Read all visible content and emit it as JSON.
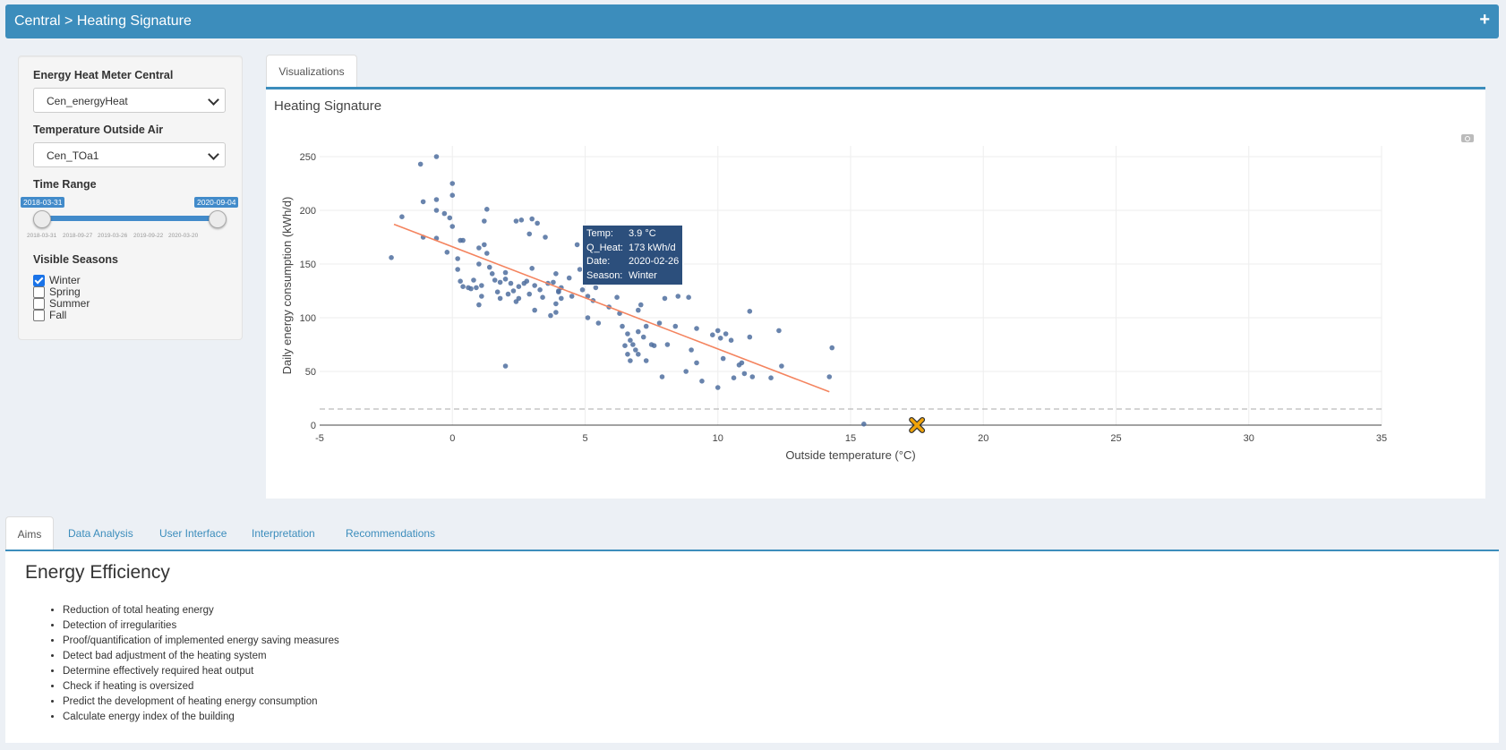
{
  "header": {
    "title": "Central > Heating Signature",
    "expand": "+"
  },
  "sidebar": {
    "meter_label": "Energy Heat Meter Central",
    "meter_value": "Cen_energyHeat",
    "temp_label": "Temperature Outside Air",
    "temp_value": "Cen_TOa1",
    "range_label": "Time Range",
    "range_from": "2018-03-31",
    "range_to": "2020-09-04",
    "range_ticks": [
      "2018-03-31",
      "2018-09-27",
      "2019-03-26",
      "2019-09-22",
      "2020-03-20"
    ],
    "seasons_label": "Visible Seasons",
    "seasons": [
      {
        "label": "Winter",
        "checked": true
      },
      {
        "label": "Spring",
        "checked": false
      },
      {
        "label": "Summer",
        "checked": false
      },
      {
        "label": "Fall",
        "checked": false
      }
    ]
  },
  "visualizations_tab": "Visualizations",
  "plot_title": "Heating Signature",
  "tooltip": {
    "temp_key": "Temp:",
    "temp_val": "3.9 °C",
    "heat_key": "Q_Heat:",
    "heat_val": "173 kWh/d",
    "date_key": "Date:",
    "date_val": "2020-02-26",
    "season_key": "Season:",
    "season_val": "Winter"
  },
  "chart_data": {
    "type": "scatter",
    "xlabel": "Outside temperature (°C)",
    "ylabel": "Daily energy consumption (kWh/d)",
    "xlim": [
      -5,
      35
    ],
    "ylim": [
      0,
      260
    ],
    "xticks": [
      -5,
      0,
      5,
      10,
      15,
      20,
      25,
      30,
      35
    ],
    "yticks": [
      0,
      50,
      100,
      150,
      200,
      250
    ],
    "grid": true,
    "point_color": "#4f6f9f",
    "line_color": "#f4845f",
    "regression": {
      "x": [
        -2.2,
        14.2
      ],
      "y": [
        187,
        31
      ]
    },
    "threshold_y": 15,
    "marker": {
      "x": 17.5,
      "y": 0,
      "color": "#f0a30a"
    },
    "points": [
      [
        -2.3,
        156
      ],
      [
        -1.9,
        194
      ],
      [
        -1.2,
        243
      ],
      [
        -1.1,
        208
      ],
      [
        -1.1,
        175
      ],
      [
        -0.6,
        250
      ],
      [
        -0.6,
        210
      ],
      [
        -0.6,
        200
      ],
      [
        -0.6,
        174
      ],
      [
        -0.3,
        197
      ],
      [
        -0.2,
        161
      ],
      [
        0,
        225
      ],
      [
        0,
        214
      ],
      [
        -0.1,
        193
      ],
      [
        0,
        185
      ],
      [
        0.2,
        155
      ],
      [
        0.2,
        145
      ],
      [
        0.3,
        172
      ],
      [
        0.4,
        172
      ],
      [
        0.3,
        134
      ],
      [
        0.4,
        129
      ],
      [
        0.6,
        128
      ],
      [
        0.7,
        127
      ],
      [
        0.8,
        135
      ],
      [
        0.9,
        128
      ],
      [
        1,
        112
      ],
      [
        1,
        150
      ],
      [
        1,
        165
      ],
      [
        1.1,
        120
      ],
      [
        1.1,
        130
      ],
      [
        1.2,
        168
      ],
      [
        1.2,
        190
      ],
      [
        1.3,
        201
      ],
      [
        1.3,
        160
      ],
      [
        1.4,
        147
      ],
      [
        1.5,
        141
      ],
      [
        1.6,
        135
      ],
      [
        1.7,
        124
      ],
      [
        1.8,
        118
      ],
      [
        1.8,
        133
      ],
      [
        2,
        55
      ],
      [
        2,
        136
      ],
      [
        2,
        142
      ],
      [
        2.1,
        122
      ],
      [
        2.2,
        132
      ],
      [
        2.3,
        125
      ],
      [
        2.4,
        190
      ],
      [
        2.4,
        115
      ],
      [
        2.5,
        118
      ],
      [
        2.5,
        129
      ],
      [
        2.6,
        191
      ],
      [
        2.7,
        132
      ],
      [
        2.8,
        134
      ],
      [
        2.9,
        122
      ],
      [
        2.9,
        178
      ],
      [
        3,
        192
      ],
      [
        3,
        146
      ],
      [
        3.1,
        107
      ],
      [
        3.1,
        130
      ],
      [
        3.2,
        188
      ],
      [
        3.3,
        126
      ],
      [
        3.4,
        119
      ],
      [
        3.5,
        175
      ],
      [
        3.6,
        132
      ],
      [
        3.7,
        102
      ],
      [
        3.8,
        133
      ],
      [
        3.9,
        113
      ],
      [
        3.9,
        105
      ],
      [
        3.9,
        141
      ],
      [
        4,
        124
      ],
      [
        4.1,
        128
      ],
      [
        4,
        125
      ],
      [
        4.1,
        118
      ],
      [
        4.4,
        137
      ],
      [
        4.5,
        120
      ],
      [
        4.7,
        168
      ],
      [
        4.8,
        145
      ],
      [
        4.9,
        126
      ],
      [
        5.1,
        120
      ],
      [
        5.1,
        100
      ],
      [
        5.4,
        128
      ],
      [
        5.3,
        116
      ],
      [
        5.5,
        95
      ],
      [
        5.8,
        144
      ],
      [
        5.9,
        110
      ],
      [
        6,
        133
      ],
      [
        6.2,
        119
      ],
      [
        6.3,
        104
      ],
      [
        6.4,
        92
      ],
      [
        6.5,
        74
      ],
      [
        6.6,
        66
      ],
      [
        6.6,
        85
      ],
      [
        6.7,
        60
      ],
      [
        6.7,
        79
      ],
      [
        6.8,
        75
      ],
      [
        6.9,
        70
      ],
      [
        7,
        87
      ],
      [
        7,
        107
      ],
      [
        7.1,
        112
      ],
      [
        7,
        66
      ],
      [
        7.2,
        82
      ],
      [
        7.3,
        60
      ],
      [
        7.3,
        92
      ],
      [
        7.5,
        75
      ],
      [
        7.6,
        74
      ],
      [
        7.8,
        95
      ],
      [
        7.9,
        45
      ],
      [
        8,
        140
      ],
      [
        8,
        118
      ],
      [
        8.1,
        75
      ],
      [
        8.4,
        92
      ],
      [
        8.5,
        120
      ],
      [
        8.5,
        143
      ],
      [
        8.8,
        50
      ],
      [
        8.9,
        119
      ],
      [
        9,
        70
      ],
      [
        9.2,
        90
      ],
      [
        9.2,
        58
      ],
      [
        9.4,
        41
      ],
      [
        9.8,
        84
      ],
      [
        10,
        35
      ],
      [
        10,
        88
      ],
      [
        10.1,
        81
      ],
      [
        10.2,
        62
      ],
      [
        10.3,
        85
      ],
      [
        10.5,
        79
      ],
      [
        10.6,
        44
      ],
      [
        10.8,
        56
      ],
      [
        10.9,
        58
      ],
      [
        11,
        48
      ],
      [
        11.2,
        82
      ],
      [
        11.2,
        106
      ],
      [
        11.3,
        45
      ],
      [
        12,
        44
      ],
      [
        12.3,
        88
      ],
      [
        12.4,
        55
      ],
      [
        14.2,
        45
      ],
      [
        14.3,
        72
      ],
      [
        15.5,
        1
      ]
    ]
  },
  "bottom_tabs": [
    "Aims",
    "Data Analysis",
    "User Interface",
    "Interpretation",
    "Recommendations"
  ],
  "aims": {
    "heading": "Energy Efficiency",
    "items": [
      "Reduction of total heating energy",
      "Detection of irregularities",
      "Proof/quantification of implemented energy saving measures",
      "Detect bad adjustment of the heating system",
      "Determine effectively required heat output",
      "Check if heating is oversized",
      "Predict the development of heating energy consumption",
      "Calculate energy index of the building"
    ]
  }
}
